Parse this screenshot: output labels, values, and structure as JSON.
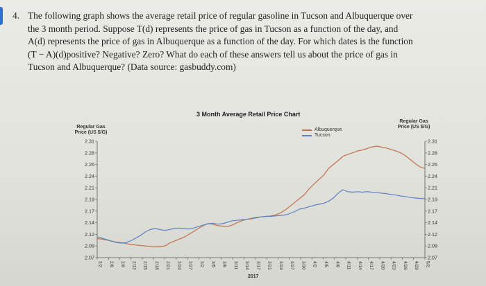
{
  "problem": {
    "number": "4.",
    "lines": [
      "The following graph shows the average retail price of regular gasoline in Tucson and Albuquerque over",
      "the 3 month period.  Suppose T(d) represents the price of gas in Tucson as a function of the day, and",
      "A(d) represents the price of gas in Albuquerque as a function of the day.  For which dates is the function",
      "(T − A)(d)positive?  Negative?  Zero?  What do each of these answers tell us about the price of gas in",
      "Tucson and Albuquerque?  (Data source: gasbuddy.com)"
    ]
  },
  "accent_color": "#2f6fd1",
  "chart_data": {
    "type": "line",
    "title": "3 Month Average Retail Price Chart",
    "left_axis_title": [
      "Regular Gas",
      "Price (US $/G)"
    ],
    "right_axis_title": [
      "Regular Gas",
      "Price (US $/G)"
    ],
    "left_ticks": [
      "2.31",
      "2.28",
      "2.26",
      "2.24",
      "2.21",
      "2.19",
      "2.17",
      "2.14",
      "2.12",
      "2.09",
      "2.07"
    ],
    "right_ticks": [
      "2.31",
      "2.28",
      "2.26",
      "2.24",
      "2.21",
      "2.19",
      "2.17",
      "2.14",
      "2.12",
      "2.09",
      "2.07"
    ],
    "x_ticks": [
      "2/2",
      "2/6",
      "2/9",
      "2/12",
      "2/15",
      "2/18",
      "2/21",
      "2/24",
      "2/27",
      "3/2",
      "3/5",
      "3/8",
      "3/11",
      "3/14",
      "3/17",
      "3/21",
      "3/24",
      "3/27",
      "3/30",
      "4/2",
      "4/5",
      "4/8",
      "4/11",
      "4/14",
      "4/17",
      "4/20",
      "4/23",
      "4/26",
      "4/29",
      "5/2"
    ],
    "year_label": "2017",
    "ylim": [
      2.07,
      2.31
    ],
    "grid": false,
    "legend_position": "top-right",
    "series": [
      {
        "name": "Albuquerque",
        "color": "#c0704a",
        "values": [
          2.109,
          2.108,
          2.106,
          2.104,
          2.102,
          2.101,
          2.099,
          2.097,
          2.096,
          2.095,
          2.094,
          2.093,
          2.092,
          2.093,
          2.094,
          2.1,
          2.104,
          2.108,
          2.112,
          2.118,
          2.124,
          2.13,
          2.136,
          2.14,
          2.139,
          2.136,
          2.135,
          2.134,
          2.137,
          2.142,
          2.146,
          2.149,
          2.15,
          2.152,
          2.154,
          2.155,
          2.156,
          2.158,
          2.162,
          2.168,
          2.176,
          2.184,
          2.192,
          2.2,
          2.212,
          2.222,
          2.231,
          2.24,
          2.254,
          2.262,
          2.27,
          2.279,
          2.283,
          2.286,
          2.29,
          2.292,
          2.295,
          2.298,
          2.3,
          2.298,
          2.296,
          2.293,
          2.29,
          2.286,
          2.28,
          2.272,
          2.264,
          2.257,
          2.254
        ]
      },
      {
        "name": "Tucson",
        "color": "#5b82c4",
        "values": [
          2.113,
          2.11,
          2.107,
          2.104,
          2.101,
          2.1,
          2.101,
          2.105,
          2.11,
          2.116,
          2.123,
          2.128,
          2.13,
          2.128,
          2.126,
          2.128,
          2.13,
          2.131,
          2.13,
          2.129,
          2.131,
          2.134,
          2.137,
          2.14,
          2.141,
          2.139,
          2.14,
          2.143,
          2.146,
          2.147,
          2.148,
          2.149,
          2.151,
          2.153,
          2.154,
          2.155,
          2.155,
          2.156,
          2.157,
          2.158,
          2.161,
          2.165,
          2.17,
          2.172,
          2.175,
          2.178,
          2.18,
          2.182,
          2.186,
          2.193,
          2.203,
          2.21,
          2.206,
          2.205,
          2.206,
          2.205,
          2.206,
          2.205,
          2.204,
          2.203,
          2.202,
          2.2,
          2.199,
          2.197,
          2.196,
          2.194,
          2.193,
          2.192,
          2.192
        ]
      }
    ]
  }
}
